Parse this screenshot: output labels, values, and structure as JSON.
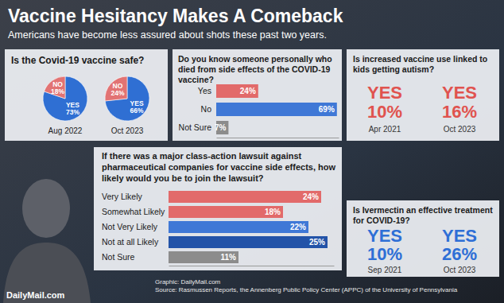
{
  "title": "Vaccine Hesitancy Makes A Comeback",
  "subtitle": "Americans have become less assured about shots these past two years.",
  "credit": "Graphic: DailyMail.com",
  "source": "Source: Rasmussen Reports, the Annenberg Public Policy Center (APPC) of the University of Pennsylvania",
  "logo": "DailyMail.com",
  "chart_data": [
    {
      "type": "pie",
      "title": "Is the Covid-19 vaccine safe?",
      "categories": [
        "YES",
        "NO"
      ],
      "colors": [
        "#2f6fd3",
        "#e27373"
      ],
      "data_labels": true,
      "series": [
        {
          "name": "Aug 2022",
          "values": [
            73,
            18
          ],
          "value_labels": [
            "73%",
            "18%"
          ]
        },
        {
          "name": "Oct 2023",
          "values": [
            66,
            24
          ],
          "value_labels": [
            "66%",
            "24%"
          ]
        }
      ]
    },
    {
      "type": "bar",
      "orientation": "horizontal",
      "title": "Do you know someone personally who died from side effects of the COVID-19 vaccine?",
      "categories": [
        "Yes",
        "No",
        "Not Sure"
      ],
      "values": [
        24,
        69,
        7
      ],
      "value_labels": [
        "24%",
        "69%",
        "7%"
      ],
      "colors": [
        "#e26a6a",
        "#3f78d6",
        "#8c8c8c"
      ],
      "xlim": [
        0,
        70
      ],
      "tick_labels": "y",
      "data_labels": true
    },
    {
      "type": "stat",
      "title": "Is increased vaccine use linked to kids getting autism?",
      "categories": [
        "Apr 2021",
        "Oct 2023"
      ],
      "series": [
        {
          "name": "YES",
          "values": [
            10,
            16
          ],
          "value_labels": [
            "10%",
            "16%"
          ],
          "color": "#e0534f"
        }
      ],
      "data_labels": true
    },
    {
      "type": "bar",
      "orientation": "horizontal",
      "title": "If there was a major class-action lawsuit against pharmaceutical companies for vaccine side effects, how likely would you be to join the lawsuit?",
      "categories": [
        "Very Likely",
        "Somewhat Likely",
        "Not Very Likely",
        "Not at all Likely",
        "Not Sure"
      ],
      "values": [
        24,
        18,
        22,
        25,
        11
      ],
      "value_labels": [
        "24%",
        "18%",
        "22%",
        "25%",
        "11%"
      ],
      "colors": [
        "#e26a6a",
        "#e26a6a",
        "#3f78d6",
        "#2353a8",
        "#8c8c8c"
      ],
      "xlim": [
        0,
        26
      ],
      "tick_labels": "y",
      "data_labels": true
    },
    {
      "type": "stat",
      "title": "Is Ivermectin an effective treatment for COVID-19?",
      "categories": [
        "Sep 2021",
        "Oct 2023"
      ],
      "series": [
        {
          "name": "YES",
          "values": [
            10,
            26
          ],
          "value_labels": [
            "10%",
            "26%"
          ],
          "color": "#2e6fd6"
        }
      ],
      "data_labels": true
    }
  ]
}
